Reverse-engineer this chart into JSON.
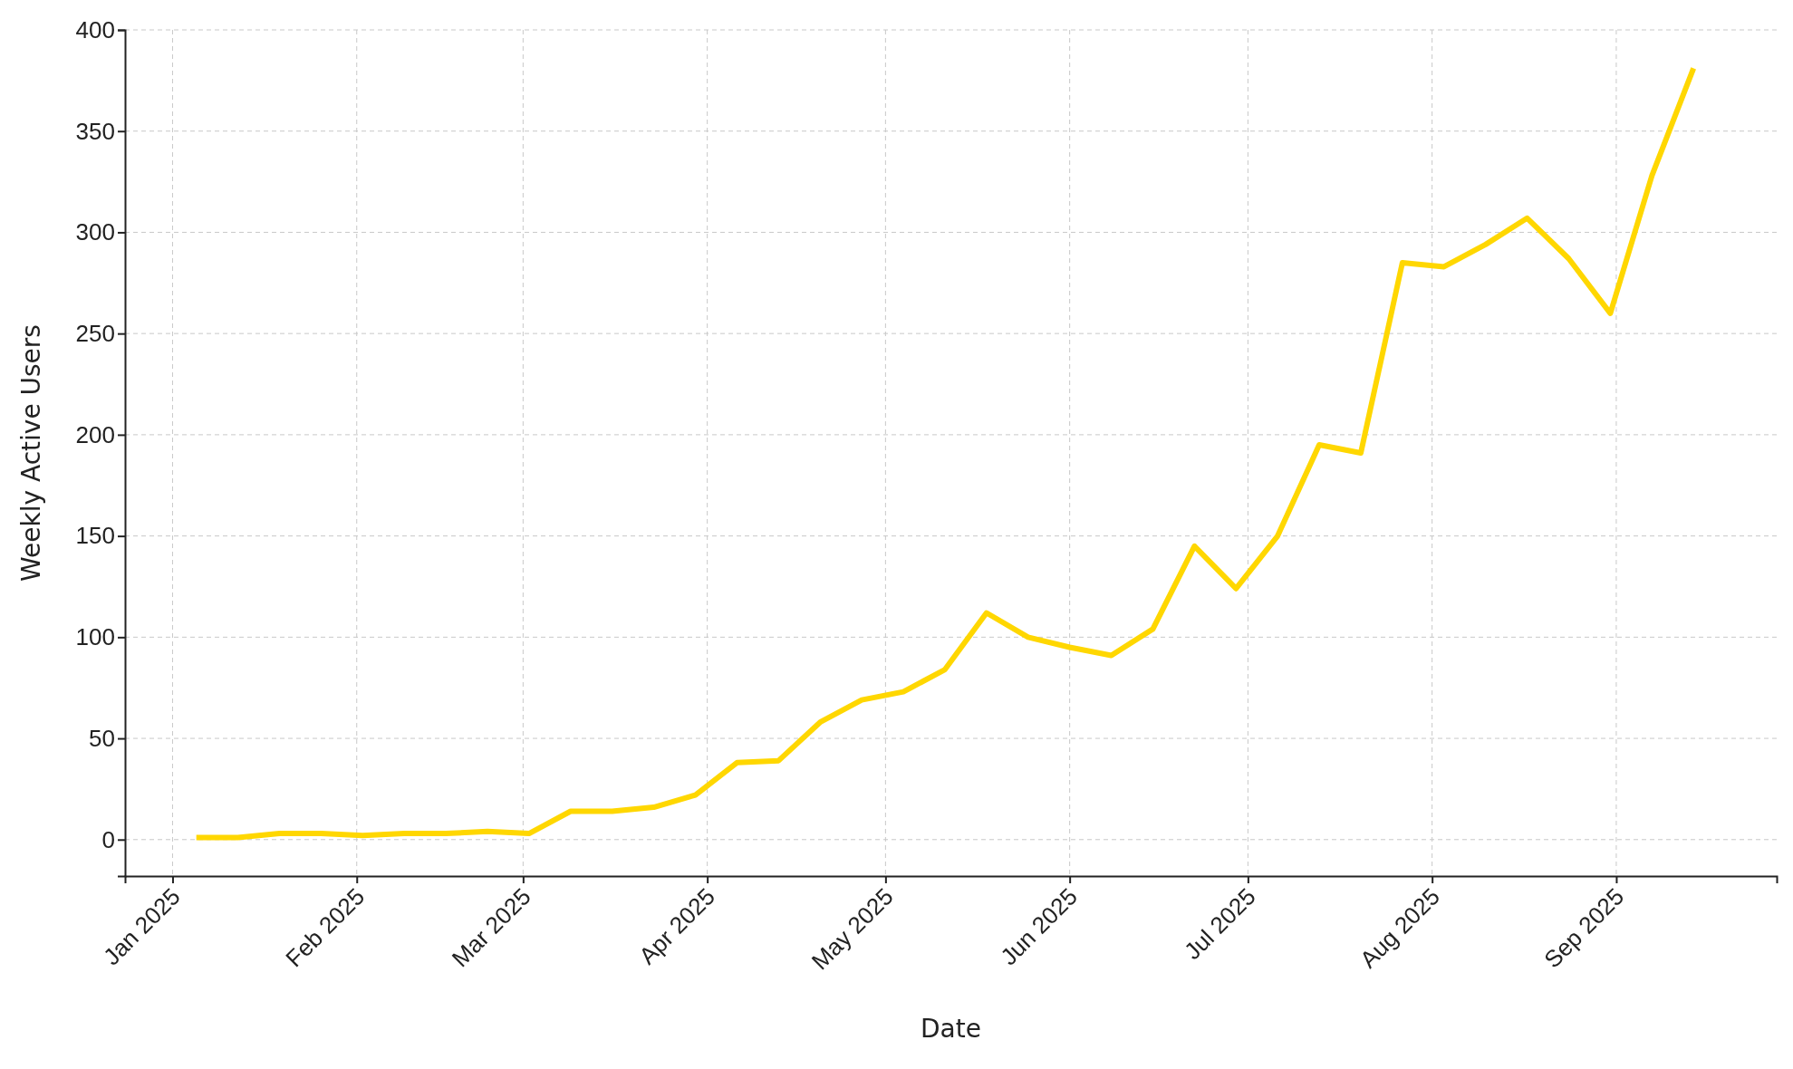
{
  "chart_data": {
    "type": "line",
    "xlabel": "Date",
    "ylabel": "Weekly Active Users",
    "x": [
      "2025-01-05",
      "2025-01-12",
      "2025-01-19",
      "2025-01-26",
      "2025-02-02",
      "2025-02-09",
      "2025-02-16",
      "2025-02-23",
      "2025-03-02",
      "2025-03-09",
      "2025-03-16",
      "2025-03-23",
      "2025-03-30",
      "2025-04-06",
      "2025-04-13",
      "2025-04-20",
      "2025-04-27",
      "2025-05-04",
      "2025-05-11",
      "2025-05-18",
      "2025-05-25",
      "2025-06-01",
      "2025-06-08",
      "2025-06-15",
      "2025-06-22",
      "2025-06-29",
      "2025-07-06",
      "2025-07-13",
      "2025-07-20",
      "2025-07-27",
      "2025-08-03",
      "2025-08-10",
      "2025-08-17",
      "2025-08-24",
      "2025-08-31",
      "2025-09-07",
      "2025-09-14"
    ],
    "series": [
      {
        "color": "#ffd700",
        "values": [
          1,
          1,
          3,
          3,
          2,
          3,
          3,
          4,
          3,
          14,
          14,
          16,
          22,
          38,
          39,
          58,
          69,
          73,
          84,
          112,
          100,
          95,
          91,
          104,
          145,
          124,
          150,
          195,
          191,
          285,
          283,
          294,
          307,
          287,
          260,
          328,
          381
        ]
      }
    ],
    "xlim": [
      "2024-12-24",
      "2025-09-28"
    ],
    "ylim": [
      -18,
      400
    ],
    "xticks": [
      {
        "value": "2025-01-01",
        "label": "Jan 2025"
      },
      {
        "value": "2025-02-01",
        "label": "Feb 2025"
      },
      {
        "value": "2025-03-01",
        "label": "Mar 2025"
      },
      {
        "value": "2025-04-01",
        "label": "Apr 2025"
      },
      {
        "value": "2025-05-01",
        "label": "May 2025"
      },
      {
        "value": "2025-06-01",
        "label": "Jun 2025"
      },
      {
        "value": "2025-07-01",
        "label": "Jul 2025"
      },
      {
        "value": "2025-08-01",
        "label": "Aug 2025"
      },
      {
        "value": "2025-09-01",
        "label": "Sep 2025"
      }
    ],
    "yticks": [
      0,
      50,
      100,
      150,
      200,
      250,
      300,
      350,
      400
    ],
    "grid": true,
    "line_style": "solid",
    "marker": "none"
  }
}
